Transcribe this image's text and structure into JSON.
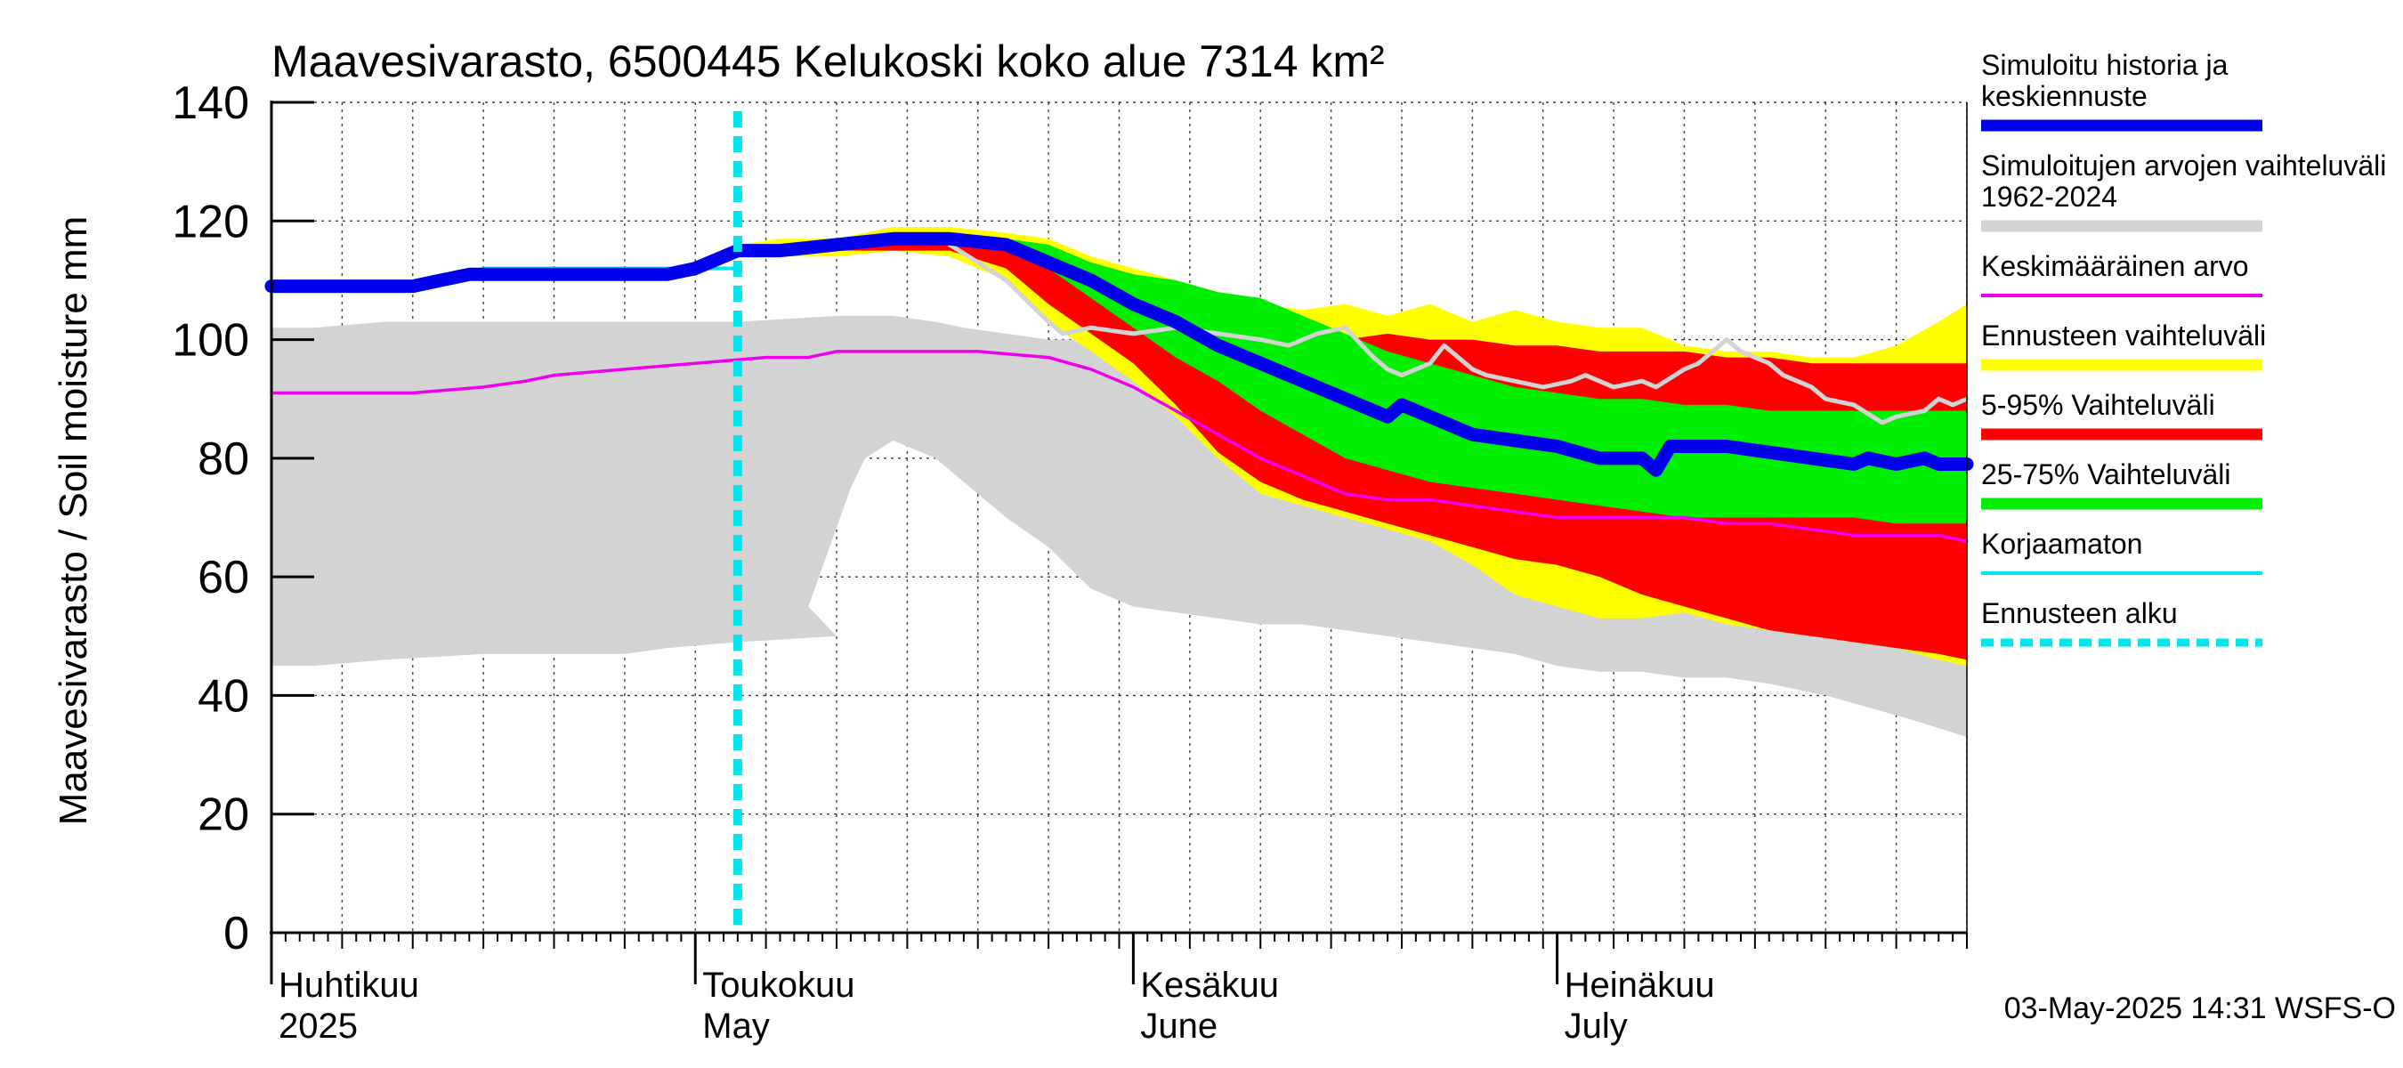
{
  "chart_data": {
    "type": "area",
    "title": "Maavesivarasto, 6500445 Kelukoski koko alue 7314 km²",
    "ylabel": "Maavesivarasto / Soil moisture   mm",
    "ylim": [
      0,
      140
    ],
    "yticks": [
      0,
      20,
      40,
      60,
      80,
      100,
      120,
      140
    ],
    "x_range_days": [
      0,
      120
    ],
    "x_unit": "days since 2025-04-01",
    "grid": true,
    "forecast_start_day": 33,
    "month_labels": [
      {
        "day": 0,
        "fi": "Huhtikuu",
        "en": "2025"
      },
      {
        "day": 30,
        "fi": "Toukokuu",
        "en": "May"
      },
      {
        "day": 61,
        "fi": "Kesäkuu",
        "en": "June"
      },
      {
        "day": 91,
        "fi": "Heinäkuu",
        "en": "July"
      }
    ],
    "timestamp": "03-May-2025 14:31 WSFS-O",
    "legend": [
      {
        "label": "Simuloitu historia ja keskiennuste",
        "color": "#0000ee",
        "style": "thick"
      },
      {
        "label": "Simuloitujen arvojen vaihteluväli 1962-2024",
        "color": "#d3d3d3",
        "style": "band"
      },
      {
        "label": "Keskimääräinen arvo",
        "color": "#ee00ee",
        "style": "thin"
      },
      {
        "label": "Ennusteen vaihteluväli",
        "color": "#ffff00",
        "style": "band"
      },
      {
        "label": "5-95% Vaihteluväli",
        "color": "#ff0000",
        "style": "band"
      },
      {
        "label": "25-75% Vaihteluväli",
        "color": "#00ee00",
        "style": "band"
      },
      {
        "label": "Korjaamaton",
        "color": "#00e5ee",
        "style": "thin"
      },
      {
        "label": "Ennusteen alku",
        "color": "#00e5ee",
        "style": "dashed"
      }
    ],
    "series": [
      {
        "name": "Simuloitujen arvojen vaihteluväli 1962-2024",
        "kind": "band",
        "color": "#d3d3d3",
        "x": [
          0,
          3,
          8,
          15,
          25,
          28,
          33,
          40,
          38,
          41,
          42,
          44,
          47,
          49,
          52,
          55,
          58,
          61,
          64,
          67,
          70,
          73,
          76,
          79,
          82,
          85,
          88,
          91,
          94,
          97,
          100,
          103,
          106,
          110,
          113,
          116,
          120
        ],
        "low": [
          45,
          45,
          46,
          47,
          47,
          48,
          49,
          50,
          55,
          75,
          80,
          83,
          80,
          76,
          70,
          65,
          58,
          55,
          54,
          53,
          52,
          52,
          51,
          50,
          49,
          48,
          47,
          45,
          44,
          44,
          43,
          43,
          42,
          40,
          38,
          36,
          33
        ],
        "high": [
          102,
          102,
          103,
          103,
          103,
          103,
          103,
          104,
          104,
          104,
          104,
          104,
          103,
          102,
          101,
          100,
          100,
          99,
          98,
          97,
          96,
          96,
          96,
          95,
          95,
          94,
          94,
          93,
          93,
          92,
          92,
          92,
          91,
          90,
          90,
          89,
          88
        ]
      },
      {
        "name": "Ennusteen vaihteluväli",
        "kind": "band",
        "color": "#ffff00",
        "x": [
          33,
          36,
          40,
          44,
          48,
          52,
          55,
          58,
          61,
          64,
          67,
          70,
          73,
          76,
          79,
          82,
          85,
          88,
          91,
          94,
          97,
          100,
          103,
          106,
          109,
          112,
          115,
          118,
          120
        ],
        "low": [
          114,
          114,
          114,
          115,
          114,
          110,
          103,
          98,
          93,
          87,
          80,
          74,
          72,
          70,
          68,
          66,
          62,
          57,
          55,
          53,
          53,
          54,
          52,
          51,
          50,
          49,
          48,
          46,
          45
        ],
        "high": [
          116,
          117,
          117,
          119,
          119,
          118,
          117,
          114,
          112,
          110,
          108,
          106,
          105,
          106,
          104,
          106,
          103,
          105,
          103,
          102,
          102,
          99,
          98,
          98,
          97,
          97,
          99,
          103,
          106
        ]
      },
      {
        "name": "5-95% Vaihteluväli",
        "kind": "band",
        "color": "#ff0000",
        "x": [
          33,
          36,
          40,
          44,
          48,
          52,
          55,
          58,
          61,
          64,
          67,
          70,
          73,
          76,
          79,
          82,
          85,
          88,
          91,
          94,
          97,
          100,
          103,
          106,
          109,
          112,
          115,
          118,
          120
        ],
        "low": [
          114,
          114,
          115,
          115,
          115,
          112,
          106,
          101,
          96,
          89,
          81,
          76,
          73,
          71,
          69,
          67,
          65,
          63,
          62,
          60,
          57,
          55,
          53,
          51,
          50,
          49,
          48,
          47,
          46
        ],
        "high": [
          115,
          116,
          117,
          118,
          118,
          117,
          115,
          113,
          111,
          109,
          107,
          104,
          101,
          100,
          101,
          100,
          100,
          99,
          99,
          98,
          98,
          98,
          97,
          97,
          96,
          96,
          96,
          96,
          96
        ]
      },
      {
        "name": "25-75% Vaihteluväli",
        "kind": "band",
        "color": "#00ee00",
        "x": [
          48,
          52,
          55,
          58,
          61,
          64,
          67,
          70,
          73,
          76,
          79,
          82,
          85,
          88,
          91,
          94,
          97,
          100,
          103,
          106,
          109,
          112,
          115,
          118,
          120
        ],
        "low": [
          116,
          115,
          112,
          107,
          102,
          97,
          93,
          88,
          84,
          80,
          78,
          76,
          75,
          74,
          73,
          72,
          71,
          70,
          70,
          70,
          70,
          70,
          69,
          69,
          69
        ],
        "high": [
          117,
          117,
          116,
          113,
          111,
          110,
          108,
          107,
          104,
          101,
          98,
          96,
          94,
          92,
          91,
          90,
          90,
          89,
          89,
          88,
          88,
          88,
          88,
          88,
          88
        ]
      },
      {
        "name": "Median",
        "kind": "line",
        "color": "#d3d3d3",
        "x": [
          48,
          52,
          55,
          56,
          58,
          61,
          64,
          67,
          70,
          72,
          74,
          76,
          78,
          79,
          80,
          82,
          83,
          85,
          86,
          88,
          90,
          92,
          93,
          95,
          97,
          98,
          100,
          101,
          103,
          104,
          106,
          107,
          109,
          110,
          112,
          114,
          115,
          117,
          118,
          119,
          120
        ],
        "y": [
          116,
          110,
          103,
          101,
          102,
          101,
          102,
          101,
          100,
          99,
          101,
          102,
          97,
          95,
          94,
          96,
          99,
          95,
          94,
          93,
          92,
          93,
          94,
          92,
          93,
          92,
          95,
          96,
          100,
          98,
          96,
          94,
          92,
          90,
          89,
          86,
          87,
          88,
          90,
          89,
          90
        ]
      },
      {
        "name": "Keskimääräinen arvo",
        "kind": "line",
        "color": "#ee00ee",
        "x": [
          0,
          5,
          10,
          15,
          18,
          20,
          25,
          30,
          35,
          38,
          40,
          45,
          50,
          55,
          58,
          61,
          64,
          67,
          70,
          73,
          76,
          79,
          82,
          85,
          88,
          91,
          94,
          97,
          100,
          103,
          106,
          109,
          112,
          115,
          118,
          120
        ],
        "y": [
          91,
          91,
          91,
          92,
          93,
          94,
          95,
          96,
          97,
          97,
          98,
          98,
          98,
          97,
          95,
          92,
          88,
          84,
          80,
          77,
          74,
          73,
          73,
          72,
          71,
          70,
          70,
          70,
          70,
          69,
          69,
          68,
          67,
          67,
          67,
          66
        ]
      },
      {
        "name": "Korjaamaton",
        "kind": "line",
        "color": "#00e5ee",
        "x": [
          0,
          5,
          10,
          13,
          15,
          17,
          20,
          25,
          28,
          30,
          33
        ],
        "y": [
          109,
          109,
          109,
          110,
          112,
          112,
          112,
          112,
          112,
          112,
          112
        ]
      },
      {
        "name": "Simuloitu historia ja keskiennuste",
        "kind": "line",
        "color": "#0000ee",
        "x": [
          0,
          5,
          10,
          12,
          14,
          16,
          20,
          25,
          28,
          30,
          33,
          36,
          40,
          44,
          48,
          52,
          55,
          58,
          61,
          64,
          67,
          70,
          73,
          76,
          79,
          80,
          82,
          83,
          85,
          88,
          91,
          94,
          97,
          98,
          99,
          100,
          103,
          106,
          109,
          112,
          113,
          115,
          117,
          118,
          120
        ],
        "y": [
          109,
          109,
          109,
          110,
          111,
          111,
          111,
          111,
          111,
          112,
          115,
          115,
          116,
          117,
          117,
          116,
          113,
          110,
          106,
          103,
          99,
          96,
          93,
          90,
          87,
          89,
          87,
          86,
          84,
          83,
          82,
          80,
          80,
          78,
          82,
          82,
          82,
          81,
          80,
          79,
          80,
          79,
          80,
          79,
          79
        ]
      }
    ]
  }
}
